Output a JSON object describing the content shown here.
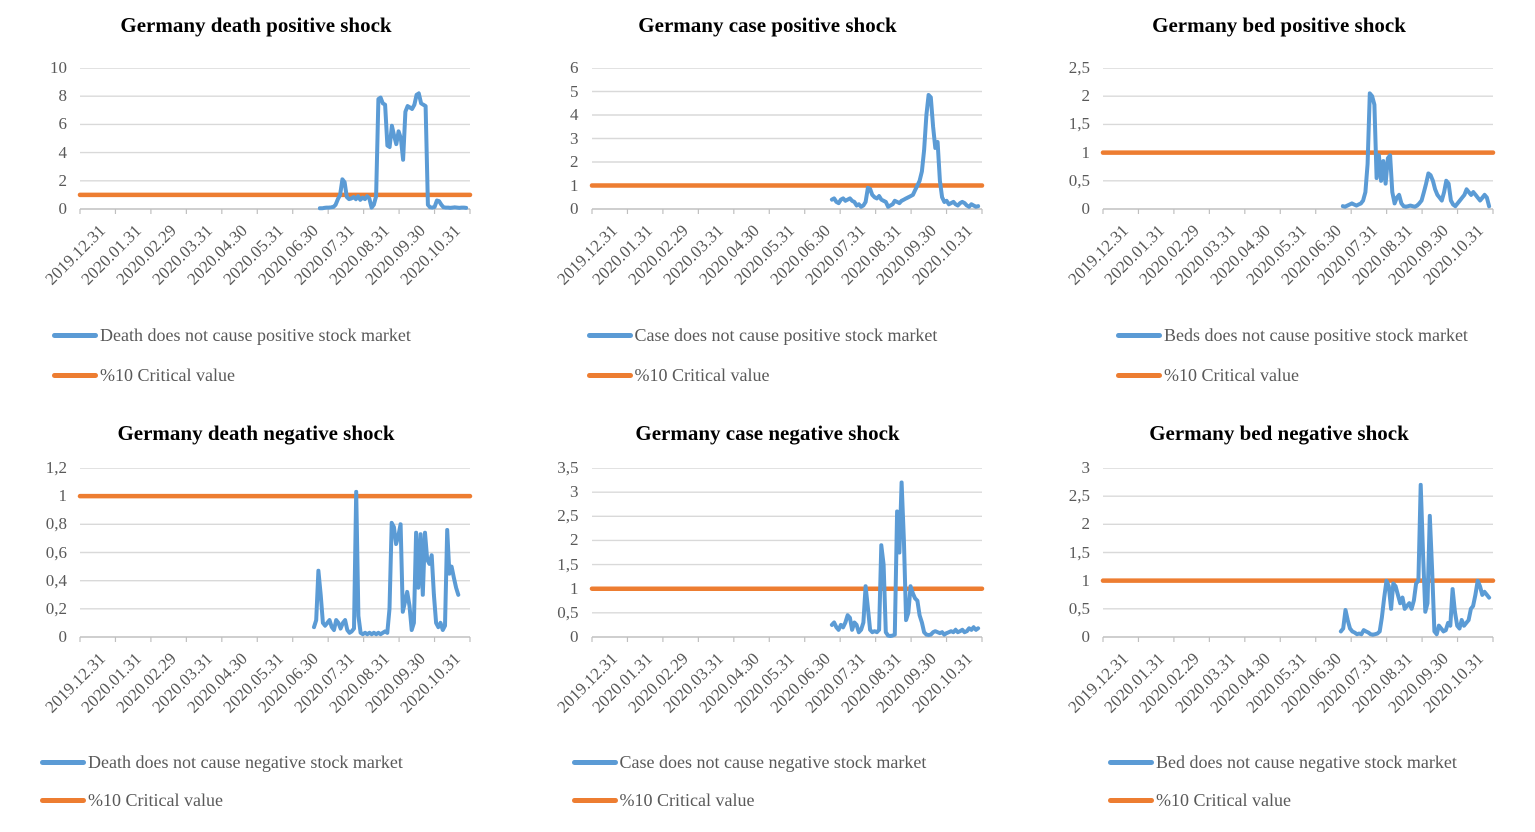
{
  "page": {
    "background": "#ffffff"
  },
  "colors": {
    "series_blue": "#5B9BD5",
    "critical_orange": "#ED7D31",
    "gridline": "#D9D9D9",
    "axis_line": "#BFBFBF",
    "tick_text": "#595959",
    "title_text": "#000000"
  },
  "x_axis": {
    "tick_labels": [
      "2019.12.31",
      "2020.01.31",
      "2020.02.29",
      "2020.03.31",
      "2020.04.30",
      "2020.05.31",
      "2020.06.30",
      "2020.07.31",
      "2020.08.31",
      "2020.09.30",
      "2020.10.31"
    ]
  },
  "chart_data": [
    {
      "id": "germany-death-positive-shock",
      "type": "line",
      "title": "Germany death positive shock",
      "xlabel": "",
      "ylabel": "",
      "ylim": [
        0,
        10
      ],
      "y_ticks": [
        0,
        2,
        4,
        6,
        8,
        10
      ],
      "y_tick_labels": [
        "0",
        "2",
        "4",
        "6",
        "8",
        "10"
      ],
      "grid": "horizontal",
      "legend_position": "bottom",
      "categories": [
        "2019.12.31",
        "2020.01.31",
        "2020.02.29",
        "2020.03.31",
        "2020.04.30",
        "2020.05.31",
        "2020.06.30",
        "2020.07.31",
        "2020.08.31",
        "2020.09.30",
        "2020.10.31"
      ],
      "critical_value": 1,
      "series": [
        {
          "name": "Death does not cause positive stock market",
          "color": "#5B9BD5",
          "x_frac_span": [
            0.615,
            0.99
          ],
          "values": [
            0.05,
            0.05,
            0.08,
            0.1,
            0.1,
            0.12,
            0.15,
            0.3,
            0.7,
            1.0,
            2.1,
            1.9,
            0.85,
            0.7,
            0.75,
            0.85,
            0.7,
            0.9,
            0.65,
            0.8,
            0.7,
            0.9,
            0.75,
            0.1,
            0.3,
            0.9,
            7.8,
            7.9,
            7.5,
            7.4,
            4.5,
            4.4,
            5.9,
            5.2,
            4.6,
            5.5,
            5.0,
            3.5,
            6.9,
            7.3,
            7.2,
            7.1,
            7.4,
            8.1,
            8.2,
            7.5,
            7.4,
            7.3,
            0.3,
            0.12,
            0.1,
            0.15,
            0.6,
            0.55,
            0.3,
            0.12,
            0.1,
            0.1,
            0.08,
            0.1,
            0.12,
            0.1,
            0.08,
            0.1,
            0.1,
            0.08
          ]
        },
        {
          "name": "%10 Critical value",
          "color": "#ED7D31",
          "constant_value": 1
        }
      ]
    },
    {
      "id": "germany-case-positive-shock",
      "type": "line",
      "title": "Germany case positive shock",
      "xlabel": "",
      "ylabel": "",
      "ylim": [
        0,
        6
      ],
      "y_ticks": [
        0,
        1,
        2,
        3,
        4,
        5,
        6
      ],
      "y_tick_labels": [
        "0",
        "1",
        "2",
        "3",
        "4",
        "5",
        "6"
      ],
      "grid": "horizontal",
      "legend_position": "bottom",
      "categories": [
        "2019.12.31",
        "2020.01.31",
        "2020.02.29",
        "2020.03.31",
        "2020.04.30",
        "2020.05.31",
        "2020.06.30",
        "2020.07.31",
        "2020.08.31",
        "2020.09.30",
        "2020.10.31"
      ],
      "critical_value": 1,
      "series": [
        {
          "name": "Case does not cause positive stock market",
          "color": "#5B9BD5",
          "x_frac_span": [
            0.615,
            0.99
          ],
          "values": [
            0.4,
            0.45,
            0.3,
            0.25,
            0.4,
            0.45,
            0.35,
            0.4,
            0.45,
            0.35,
            0.3,
            0.15,
            0.2,
            0.1,
            0.15,
            0.3,
            0.9,
            0.85,
            0.6,
            0.5,
            0.45,
            0.55,
            0.4,
            0.35,
            0.3,
            0.1,
            0.15,
            0.2,
            0.35,
            0.3,
            0.25,
            0.35,
            0.4,
            0.45,
            0.5,
            0.55,
            0.6,
            0.8,
            1.0,
            1.2,
            1.6,
            2.5,
            4.0,
            4.85,
            4.75,
            3.5,
            2.6,
            2.85,
            1.2,
            0.5,
            0.3,
            0.35,
            0.2,
            0.25,
            0.3,
            0.2,
            0.15,
            0.25,
            0.3,
            0.25,
            0.15,
            0.1,
            0.2,
            0.15,
            0.1,
            0.12
          ]
        },
        {
          "name": "%10 Critical value",
          "color": "#ED7D31",
          "constant_value": 1
        }
      ]
    },
    {
      "id": "germany-bed-positive-shock",
      "type": "line",
      "title": "Germany bed positive shock",
      "xlabel": "",
      "ylabel": "",
      "ylim": [
        0,
        2.5
      ],
      "y_ticks": [
        0,
        0.5,
        1,
        1.5,
        2,
        2.5
      ],
      "y_tick_labels": [
        "0",
        "0,5",
        "1",
        "1,5",
        "2",
        "2,5"
      ],
      "grid": "horizontal",
      "legend_position": "bottom",
      "categories": [
        "2019.12.31",
        "2020.01.31",
        "2020.02.29",
        "2020.03.31",
        "2020.04.30",
        "2020.05.31",
        "2020.06.30",
        "2020.07.31",
        "2020.08.31",
        "2020.09.30",
        "2020.10.31"
      ],
      "critical_value": 1,
      "series": [
        {
          "name": "Beds does not cause positive stock market",
          "color": "#5B9BD5",
          "x_frac_span": [
            0.615,
            0.99
          ],
          "values": [
            0.05,
            0.04,
            0.06,
            0.08,
            0.1,
            0.08,
            0.06,
            0.08,
            0.1,
            0.15,
            0.3,
            0.8,
            2.05,
            2.0,
            1.85,
            0.55,
            0.95,
            0.5,
            0.85,
            0.45,
            0.9,
            0.95,
            0.3,
            0.1,
            0.2,
            0.25,
            0.1,
            0.05,
            0.04,
            0.05,
            0.06,
            0.05,
            0.04,
            0.06,
            0.1,
            0.15,
            0.3,
            0.45,
            0.63,
            0.6,
            0.5,
            0.35,
            0.25,
            0.2,
            0.15,
            0.3,
            0.5,
            0.45,
            0.15,
            0.08,
            0.05,
            0.1,
            0.15,
            0.2,
            0.25,
            0.35,
            0.3,
            0.25,
            0.3,
            0.25,
            0.2,
            0.15,
            0.2,
            0.25,
            0.2,
            0.05
          ]
        },
        {
          "name": "%10 Critical value",
          "color": "#ED7D31",
          "constant_value": 1
        }
      ]
    },
    {
      "id": "germany-death-negative-shock",
      "type": "line",
      "title": "Germany death negative shock",
      "xlabel": "",
      "ylabel": "",
      "ylim": [
        0,
        1.2
      ],
      "y_ticks": [
        0,
        0.2,
        0.4,
        0.6,
        0.8,
        1,
        1.2
      ],
      "y_tick_labels": [
        "0",
        "0,2",
        "0,4",
        "0,6",
        "0,8",
        "1",
        "1,2"
      ],
      "grid": "horizontal",
      "legend_position": "bottom",
      "categories": [
        "2019.12.31",
        "2020.01.31",
        "2020.02.29",
        "2020.03.31",
        "2020.04.30",
        "2020.05.31",
        "2020.06.30",
        "2020.07.31",
        "2020.08.31",
        "2020.09.30",
        "2020.10.31"
      ],
      "critical_value": 1,
      "series": [
        {
          "name": "Death does not cause negative stock market",
          "color": "#5B9BD5",
          "x_frac_span": [
            0.6,
            0.97
          ],
          "values": [
            0.07,
            0.12,
            0.47,
            0.3,
            0.1,
            0.08,
            0.1,
            0.12,
            0.07,
            0.05,
            0.12,
            0.1,
            0.06,
            0.1,
            0.12,
            0.05,
            0.03,
            0.04,
            0.06,
            1.03,
            0.15,
            0.03,
            0.02,
            0.03,
            0.02,
            0.03,
            0.02,
            0.03,
            0.02,
            0.03,
            0.02,
            0.03,
            0.04,
            0.03,
            0.2,
            0.81,
            0.78,
            0.66,
            0.72,
            0.8,
            0.18,
            0.25,
            0.32,
            0.22,
            0.05,
            0.1,
            0.74,
            0.35,
            0.73,
            0.3,
            0.74,
            0.55,
            0.52,
            0.58,
            0.3,
            0.1,
            0.07,
            0.1,
            0.05,
            0.08,
            0.76,
            0.45,
            0.5,
            0.42,
            0.35,
            0.3
          ]
        },
        {
          "name": "%10 Critical value",
          "color": "#ED7D31",
          "constant_value": 1
        }
      ]
    },
    {
      "id": "germany-case-negative-shock",
      "type": "line",
      "title": "Germany case negative shock",
      "xlabel": "",
      "ylabel": "",
      "ylim": [
        0,
        3.5
      ],
      "y_ticks": [
        0,
        0.5,
        1,
        1.5,
        2,
        2.5,
        3,
        3.5
      ],
      "y_tick_labels": [
        "0",
        "0,5",
        "1",
        "1,5",
        "2",
        "2,5",
        "3",
        "3,5"
      ],
      "grid": "horizontal",
      "legend_position": "bottom",
      "categories": [
        "2019.12.31",
        "2020.01.31",
        "2020.02.29",
        "2020.03.31",
        "2020.04.30",
        "2020.05.31",
        "2020.06.30",
        "2020.07.31",
        "2020.08.31",
        "2020.09.30",
        "2020.10.31"
      ],
      "critical_value": 1,
      "series": [
        {
          "name": "Case does not cause negative stock market",
          "color": "#5B9BD5",
          "x_frac_span": [
            0.615,
            0.99
          ],
          "values": [
            0.25,
            0.3,
            0.2,
            0.15,
            0.25,
            0.2,
            0.3,
            0.45,
            0.4,
            0.15,
            0.3,
            0.25,
            0.1,
            0.15,
            0.3,
            1.05,
            0.6,
            0.15,
            0.1,
            0.12,
            0.1,
            0.15,
            1.9,
            1.5,
            0.1,
            0.03,
            0.02,
            0.03,
            0.05,
            2.6,
            1.75,
            3.2,
            2.0,
            0.35,
            0.5,
            1.05,
            0.9,
            0.8,
            0.75,
            0.45,
            0.3,
            0.1,
            0.05,
            0.04,
            0.05,
            0.1,
            0.12,
            0.1,
            0.08,
            0.1,
            0.05,
            0.08,
            0.1,
            0.12,
            0.1,
            0.15,
            0.1,
            0.12,
            0.15,
            0.1,
            0.12,
            0.18,
            0.15,
            0.2,
            0.15,
            0.18
          ]
        },
        {
          "name": "%10 Critical value",
          "color": "#ED7D31",
          "constant_value": 1
        }
      ]
    },
    {
      "id": "germany-bed-negative-shock",
      "type": "line",
      "title": "Germany bed negative shock",
      "xlabel": "",
      "ylabel": "",
      "ylim": [
        0,
        3
      ],
      "y_ticks": [
        0,
        0.5,
        1,
        1.5,
        2,
        2.5,
        3
      ],
      "y_tick_labels": [
        "0",
        "0,5",
        "1",
        "1,5",
        "2",
        "2,5",
        "3"
      ],
      "grid": "horizontal",
      "legend_position": "bottom",
      "categories": [
        "2019.12.31",
        "2020.01.31",
        "2020.02.29",
        "2020.03.31",
        "2020.04.30",
        "2020.05.31",
        "2020.06.30",
        "2020.07.31",
        "2020.08.31",
        "2020.09.30",
        "2020.10.31"
      ],
      "critical_value": 1,
      "series": [
        {
          "name": "Bed does not cause negative stock market",
          "color": "#5B9BD5",
          "x_frac_span": [
            0.61,
            0.99
          ],
          "values": [
            0.1,
            0.15,
            0.48,
            0.3,
            0.15,
            0.1,
            0.08,
            0.05,
            0.06,
            0.05,
            0.12,
            0.1,
            0.08,
            0.05,
            0.04,
            0.05,
            0.06,
            0.1,
            0.35,
            0.7,
            1.0,
            0.9,
            0.5,
            0.95,
            0.9,
            0.75,
            0.6,
            0.7,
            0.5,
            0.55,
            0.6,
            0.5,
            0.65,
            0.95,
            1.0,
            2.7,
            1.5,
            0.45,
            0.6,
            2.15,
            1.2,
            0.1,
            0.05,
            0.2,
            0.15,
            0.1,
            0.12,
            0.25,
            0.2,
            0.85,
            0.45,
            0.2,
            0.15,
            0.3,
            0.2,
            0.25,
            0.3,
            0.5,
            0.55,
            0.75,
            1.0,
            0.9,
            0.75,
            0.8,
            0.75,
            0.7
          ]
        },
        {
          "name": "%10 Critical value",
          "color": "#ED7D31",
          "constant_value": 1
        }
      ]
    }
  ]
}
